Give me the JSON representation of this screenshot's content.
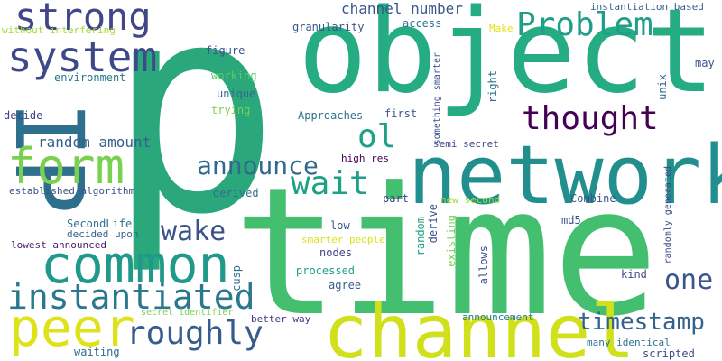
{
  "words": {
    "p": "p",
    "time": "time",
    "object": "object",
    "network": "network",
    "channel": "channel",
    "common": "common",
    "peer": "peer",
    "IP": "IP",
    "instantiated": "instantiated",
    "form": "form",
    "system": "system",
    "strong": "strong",
    "problem": "Problem",
    "thought": "thought",
    "announce": "announce",
    "wait": "wait",
    "roughly": "roughly",
    "timestamp": "timestamp",
    "ol": "ol",
    "wake": "wake",
    "one": "one",
    "channel_number": "channel number",
    "random_amount": "random amount",
    "without_interfering": "without interfering",
    "environment": "environment",
    "decide": "decide",
    "established_algorithm": "established algorithm",
    "secondlife": "SecondLife",
    "decided_upon": "decided upon",
    "lowest_announced": "lowest announced",
    "granularity": "granularity",
    "access": "access",
    "make": "Make",
    "instantiation_based": "instantiation based",
    "figure": "figure",
    "working": "working",
    "unique": "unique",
    "trying": "trying",
    "approaches": "Approaches",
    "first": "first",
    "something_smarter": "something smarter",
    "right": "right",
    "unix": "unix",
    "may": "may",
    "high_res": "high res",
    "semi_secret": "semi secret",
    "derived": "derived",
    "part": "part",
    "new_second": "new second",
    "combine": "Combine",
    "randomly_generated": "randomly generated",
    "low": "low",
    "derive": "derive",
    "md5": "md5",
    "smarter_people": "smarter people",
    "random": "random",
    "existing": "existing",
    "cusp": "cusp",
    "nodes": "nodes",
    "allows": "allows",
    "kind": "kind",
    "processed": "processed",
    "agree": "agree",
    "secret_identifier": "secret identifier",
    "better_way": "better way",
    "announcement": "announcement",
    "many_identical": "many identical",
    "waiting": "waiting",
    "scripted": "scripted"
  }
}
